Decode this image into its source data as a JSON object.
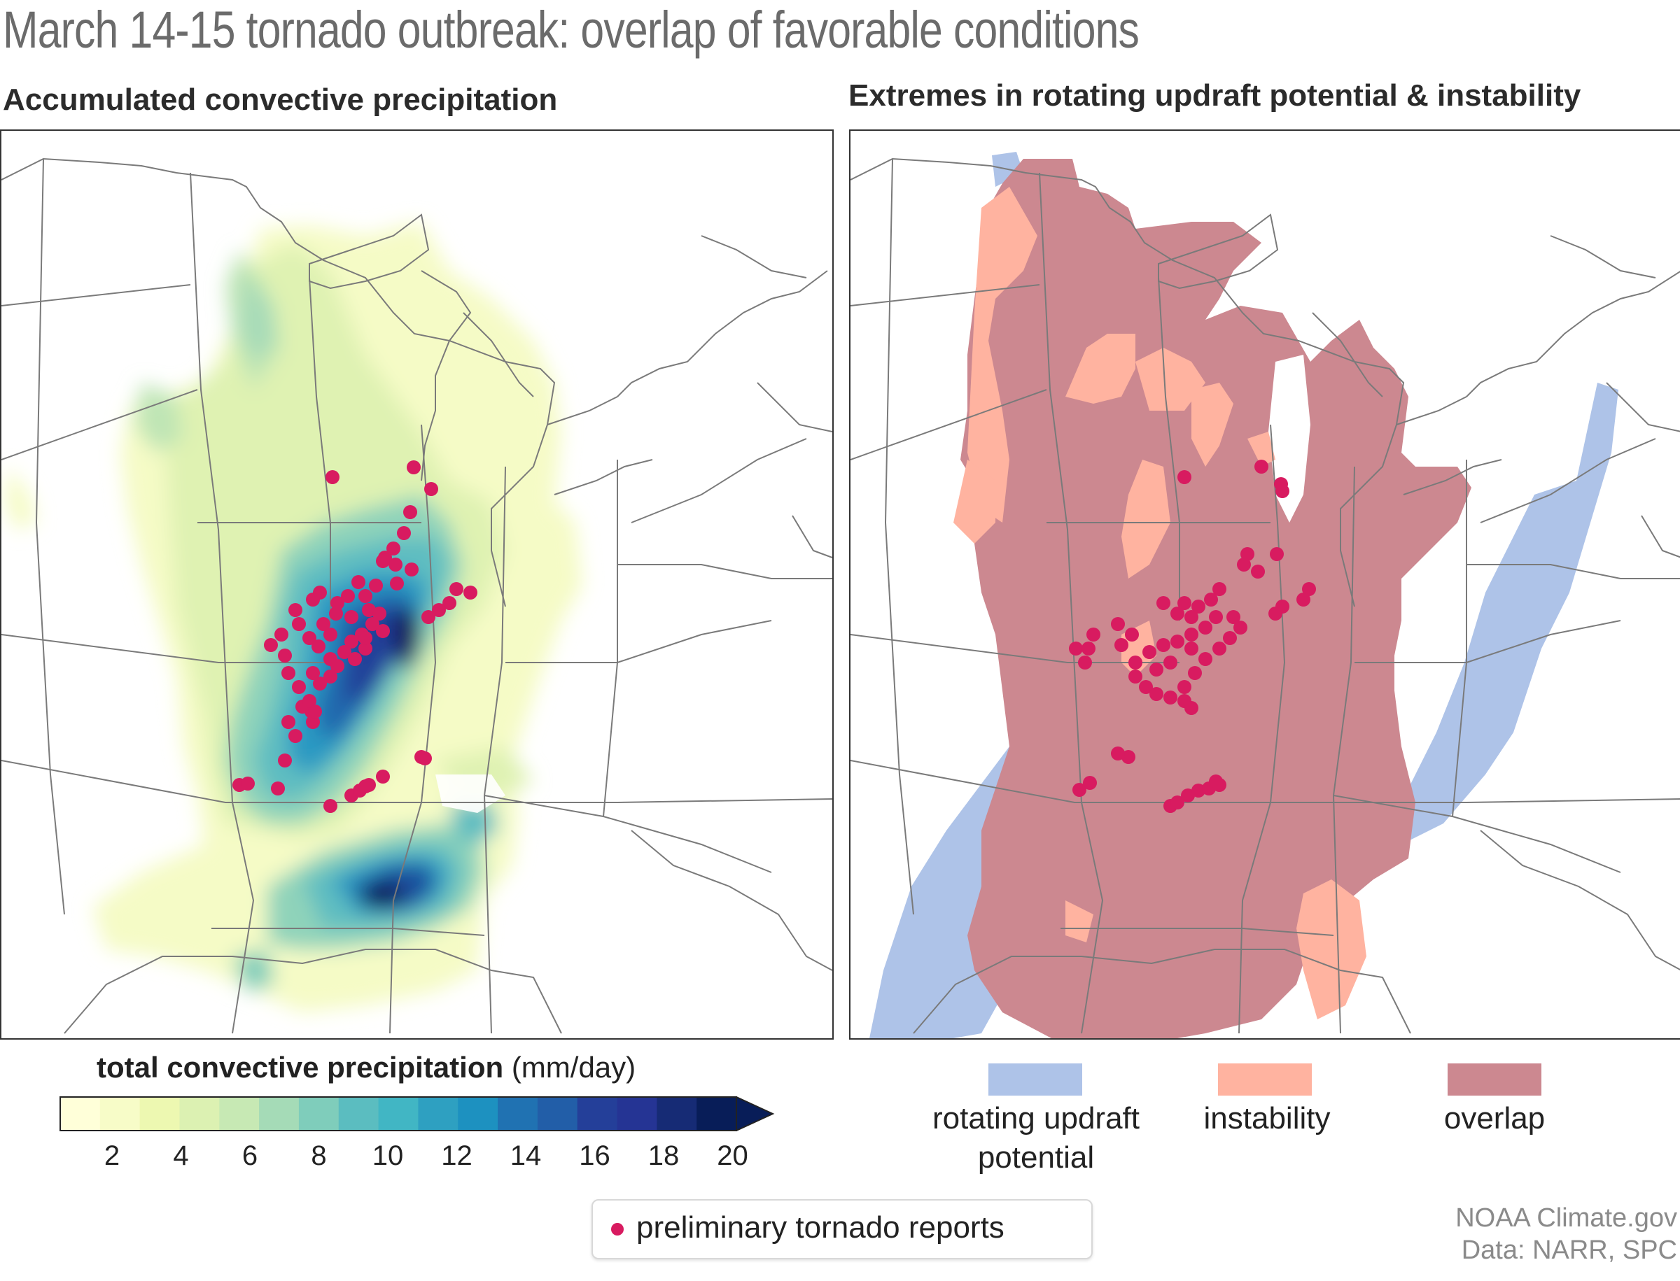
{
  "title": "March 14-15 tornado outbreak: overlap of favorable conditions",
  "left_panel": {
    "subtitle": "Accumulated convective precipitation"
  },
  "right_panel": {
    "subtitle": "Extremes in rotating updraft potential & instability"
  },
  "colorbar": {
    "title_bold": "total convective precipitation",
    "title_units": "(mm/day)",
    "ticks": [
      "2",
      "4",
      "6",
      "8",
      "10",
      "12",
      "14",
      "16",
      "18",
      "20"
    ],
    "colors": [
      "#ffffd9",
      "#f7fcc8",
      "#edf8b1",
      "#dcf1b2",
      "#c7e9b4",
      "#a5dbb7",
      "#7fcdbb",
      "#5bbdc0",
      "#41b6c4",
      "#2ea0c1",
      "#1d91c0",
      "#2072b2",
      "#225ea8",
      "#243f99",
      "#253494",
      "#162b75",
      "#081d58"
    ]
  },
  "right_legend": {
    "items": [
      {
        "label_line1": "rotating updraft",
        "label_line2": "potential",
        "color": "#aec3e8"
      },
      {
        "label_line1": "instability",
        "label_line2": "",
        "color": "#ffb3a0"
      },
      {
        "label_line1": "overlap",
        "label_line2": "",
        "color": "#cc8890"
      }
    ]
  },
  "tornado_legend": {
    "label": "preliminary tornado reports",
    "color": "#d81b60"
  },
  "credit": {
    "line1": "NOAA Climate.gov",
    "line2": "Data: NARR, SPC"
  },
  "tornado_reports": [
    [
      473,
      680
    ],
    [
      589,
      666
    ],
    [
      614,
      697
    ],
    [
      584,
      730
    ],
    [
      575,
      760
    ],
    [
      560,
      782
    ],
    [
      548,
      795
    ],
    [
      563,
      805
    ],
    [
      586,
      812
    ],
    [
      565,
      832
    ],
    [
      535,
      835
    ],
    [
      510,
      830
    ],
    [
      455,
      845
    ],
    [
      445,
      855
    ],
    [
      480,
      860
    ],
    [
      495,
      850
    ],
    [
      520,
      850
    ],
    [
      525,
      870
    ],
    [
      540,
      875
    ],
    [
      530,
      890
    ],
    [
      515,
      905
    ],
    [
      500,
      915
    ],
    [
      520,
      925
    ],
    [
      490,
      930
    ],
    [
      470,
      940
    ],
    [
      453,
      922
    ],
    [
      440,
      910
    ],
    [
      470,
      905
    ],
    [
      460,
      890
    ],
    [
      478,
      875
    ],
    [
      500,
      880
    ],
    [
      545,
      900
    ],
    [
      520,
      910
    ],
    [
      505,
      940
    ],
    [
      480,
      950
    ],
    [
      470,
      965
    ],
    [
      445,
      960
    ],
    [
      425,
      980
    ],
    [
      410,
      960
    ],
    [
      405,
      935
    ],
    [
      385,
      920
    ],
    [
      400,
      905
    ],
    [
      425,
      890
    ],
    [
      420,
      870
    ],
    [
      455,
      975
    ],
    [
      443,
      1015
    ],
    [
      445,
      1030
    ],
    [
      430,
      1008
    ],
    [
      410,
      1030
    ],
    [
      420,
      1050
    ],
    [
      650,
      840
    ],
    [
      640,
      860
    ],
    [
      625,
      870
    ],
    [
      610,
      880
    ],
    [
      670,
      845
    ],
    [
      600,
      1080
    ],
    [
      395,
      1125
    ],
    [
      470,
      1150
    ],
    [
      500,
      1135
    ],
    [
      512,
      1128
    ],
    [
      525,
      1120
    ],
    [
      340,
      1120
    ],
    [
      352,
      1118
    ],
    [
      520,
      1122
    ],
    [
      448,
      1015
    ],
    [
      405,
      1085
    ],
    [
      605,
      1082
    ],
    [
      545,
      1108
    ],
    [
      545,
      800
    ],
    [
      440,
      1000
    ]
  ],
  "tornado_reports_right": [
    [
      1690,
      680
    ],
    [
      1800,
      665
    ],
    [
      1830,
      700
    ],
    [
      1828,
      690
    ],
    [
      1780,
      790
    ],
    [
      1775,
      805
    ],
    [
      1795,
      815
    ],
    [
      1822,
      790
    ],
    [
      1868,
      840
    ],
    [
      1860,
      855
    ],
    [
      1830,
      865
    ],
    [
      1820,
      875
    ],
    [
      1740,
      840
    ],
    [
      1728,
      855
    ],
    [
      1710,
      865
    ],
    [
      1690,
      860
    ],
    [
      1700,
      880
    ],
    [
      1680,
      875
    ],
    [
      1660,
      860
    ],
    [
      1735,
      880
    ],
    [
      1720,
      895
    ],
    [
      1700,
      905
    ],
    [
      1680,
      915
    ],
    [
      1660,
      920
    ],
    [
      1640,
      930
    ],
    [
      1620,
      945
    ],
    [
      1620,
      965
    ],
    [
      1635,
      980
    ],
    [
      1650,
      990
    ],
    [
      1670,
      995
    ],
    [
      1690,
      980
    ],
    [
      1705,
      960
    ],
    [
      1720,
      940
    ],
    [
      1740,
      925
    ],
    [
      1755,
      910
    ],
    [
      1770,
      895
    ],
    [
      1760,
      880
    ],
    [
      1700,
      925
    ],
    [
      1670,
      945
    ],
    [
      1650,
      955
    ],
    [
      1600,
      920
    ],
    [
      1615,
      905
    ],
    [
      1595,
      890
    ],
    [
      1535,
      925
    ],
    [
      1553,
      925
    ],
    [
      1560,
      905
    ],
    [
      1548,
      945
    ],
    [
      1610,
      1080
    ],
    [
      1555,
      1117
    ],
    [
      1540,
      1127
    ],
    [
      1670,
      1150
    ],
    [
      1680,
      1145
    ],
    [
      1695,
      1135
    ],
    [
      1710,
      1128
    ],
    [
      1725,
      1125
    ],
    [
      1740,
      1120
    ],
    [
      1735,
      1115
    ],
    [
      1595,
      1075
    ],
    [
      1690,
      1000
    ],
    [
      1700,
      1010
    ]
  ]
}
